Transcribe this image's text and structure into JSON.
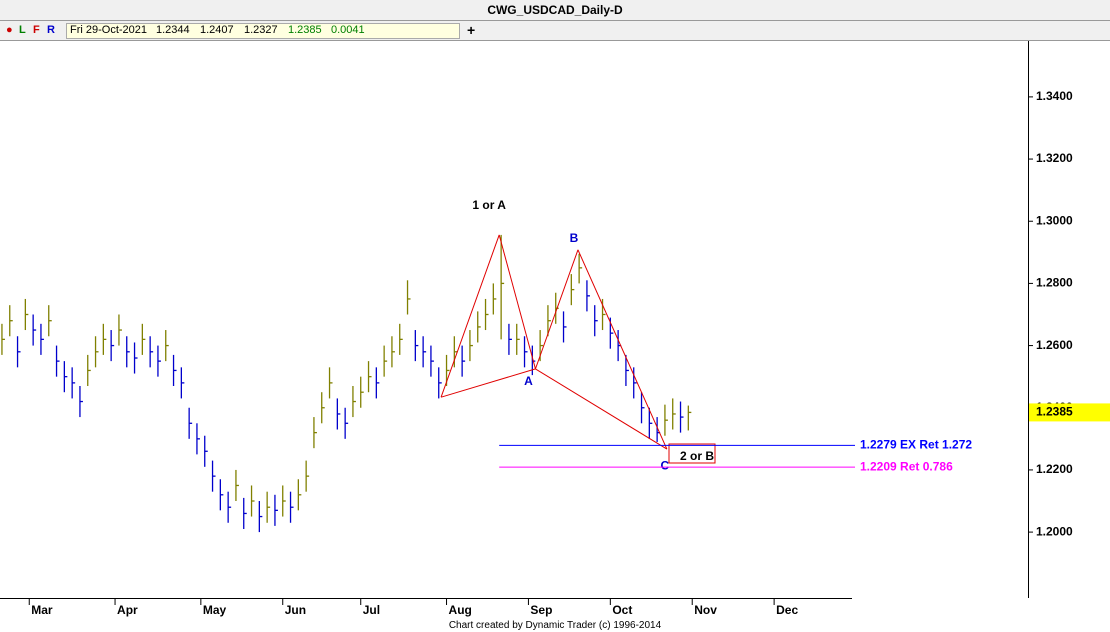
{
  "header": {
    "title": "CWG_USDCAD_Daily-D",
    "buttons": [
      "L",
      "F",
      "R"
    ],
    "date": "Fri 29-Oct-2021",
    "ohlc": [
      "1.2344",
      "1.2407",
      "1.2327",
      "1.2385"
    ],
    "change": "0.0041",
    "add": "+"
  },
  "footer": "Chart created by Dynamic Trader  (c) 1996-2014",
  "chart_data": {
    "type": "ohlc",
    "up_color": "#808000",
    "down_color": "#0000cc",
    "x": [
      0,
      2,
      4,
      6,
      8,
      10,
      12,
      14,
      16,
      18,
      20,
      22,
      24,
      26,
      28,
      30,
      32,
      34,
      36,
      38,
      40,
      42,
      44,
      46,
      48,
      50,
      52,
      54,
      56,
      58,
      60,
      62,
      64,
      66,
      68,
      70,
      72,
      74,
      76,
      78,
      80,
      82,
      84,
      86,
      88,
      90,
      92,
      94,
      96,
      98,
      100,
      102,
      104,
      106,
      108,
      110,
      112,
      114,
      116,
      118,
      120,
      122,
      124,
      126,
      128,
      130,
      132,
      134,
      136,
      138,
      140,
      142,
      144,
      146,
      148,
      150,
      152,
      154,
      156,
      158,
      160,
      162,
      164,
      166,
      168,
      170,
      172,
      174,
      176
    ],
    "high": [
      1.267,
      1.273,
      1.263,
      1.275,
      1.27,
      1.267,
      1.273,
      1.26,
      1.255,
      1.253,
      1.247,
      1.257,
      1.263,
      1.267,
      1.265,
      1.27,
      1.263,
      1.261,
      1.267,
      1.263,
      1.26,
      1.265,
      1.257,
      1.253,
      1.24,
      1.235,
      1.231,
      1.223,
      1.217,
      1.213,
      1.22,
      1.211,
      1.215,
      1.21,
      1.213,
      1.212,
      1.215,
      1.213,
      1.217,
      1.223,
      1.237,
      1.245,
      1.253,
      1.243,
      1.24,
      1.247,
      1.25,
      1.255,
      1.253,
      1.26,
      1.263,
      1.267,
      1.281,
      1.265,
      1.263,
      1.26,
      1.253,
      1.257,
      1.263,
      1.26,
      1.265,
      1.271,
      1.275,
      1.28,
      1.2956,
      1.267,
      1.267,
      1.263,
      1.26,
      1.265,
      1.273,
      1.277,
      1.271,
      1.283,
      1.2895,
      1.281,
      1.273,
      1.275,
      1.269,
      1.265,
      1.257,
      1.253,
      1.245,
      1.24,
      1.237,
      1.241,
      1.243,
      1.242,
      1.2407
    ],
    "low": [
      1.257,
      1.263,
      1.253,
      1.265,
      1.26,
      1.257,
      1.263,
      1.25,
      1.245,
      1.243,
      1.237,
      1.247,
      1.253,
      1.257,
      1.255,
      1.26,
      1.253,
      1.251,
      1.257,
      1.253,
      1.25,
      1.255,
      1.247,
      1.243,
      1.23,
      1.225,
      1.221,
      1.213,
      1.207,
      1.203,
      1.21,
      1.201,
      1.205,
      1.2,
      1.203,
      1.202,
      1.205,
      1.203,
      1.207,
      1.213,
      1.227,
      1.235,
      1.243,
      1.233,
      1.23,
      1.237,
      1.24,
      1.245,
      1.243,
      1.25,
      1.253,
      1.257,
      1.27,
      1.255,
      1.253,
      1.25,
      1.243,
      1.247,
      1.253,
      1.25,
      1.255,
      1.261,
      1.265,
      1.27,
      1.262,
      1.257,
      1.257,
      1.253,
      1.2505,
      1.255,
      1.263,
      1.267,
      1.261,
      1.273,
      1.28,
      1.271,
      1.263,
      1.265,
      1.259,
      1.255,
      1.247,
      1.243,
      1.235,
      1.23,
      1.229,
      1.231,
      1.233,
      1.232,
      1.2327
    ],
    "close": [
      1.262,
      1.268,
      1.258,
      1.27,
      1.265,
      1.262,
      1.268,
      1.255,
      1.25,
      1.248,
      1.242,
      1.252,
      1.258,
      1.262,
      1.26,
      1.265,
      1.258,
      1.256,
      1.262,
      1.258,
      1.255,
      1.26,
      1.252,
      1.248,
      1.235,
      1.23,
      1.226,
      1.218,
      1.212,
      1.208,
      1.215,
      1.206,
      1.21,
      1.205,
      1.208,
      1.207,
      1.21,
      1.208,
      1.212,
      1.218,
      1.232,
      1.24,
      1.248,
      1.238,
      1.235,
      1.242,
      1.245,
      1.25,
      1.248,
      1.255,
      1.258,
      1.262,
      1.275,
      1.26,
      1.258,
      1.255,
      1.248,
      1.252,
      1.258,
      1.255,
      1.26,
      1.266,
      1.27,
      1.275,
      1.28,
      1.262,
      1.262,
      1.258,
      1.255,
      1.26,
      1.268,
      1.272,
      1.266,
      1.278,
      1.285,
      1.276,
      1.268,
      1.27,
      1.264,
      1.26,
      1.252,
      1.248,
      1.24,
      1.235,
      1.232,
      1.236,
      1.238,
      1.237,
      1.2385
    ],
    "xlim": [
      -0.5,
      263.1
    ],
    "xticks": [
      {
        "value": 7,
        "label": "Mar"
      },
      {
        "value": 29,
        "label": "Apr"
      },
      {
        "value": 51,
        "label": "May"
      },
      {
        "value": 72,
        "label": "Jun"
      },
      {
        "value": 92,
        "label": "Jul"
      },
      {
        "value": 114,
        "label": "Aug"
      },
      {
        "value": 135,
        "label": "Sep"
      },
      {
        "value": 156,
        "label": "Oct"
      },
      {
        "value": 177,
        "label": "Nov"
      },
      {
        "value": 198,
        "label": "Dec"
      }
    ],
    "ylim": [
      1.1788,
      1.3583
    ],
    "yticks": [
      {
        "value": 1.2,
        "label": "1.2000"
      },
      {
        "value": 1.22,
        "label": "1.2200"
      },
      {
        "value": 1.24,
        "label": "1.2400"
      },
      {
        "value": 1.26,
        "label": "1.2600"
      },
      {
        "value": 1.28,
        "label": "1.2800"
      },
      {
        "value": 1.3,
        "label": "1.3000"
      },
      {
        "value": 1.32,
        "label": "1.3200"
      },
      {
        "value": 1.34,
        "label": "1.3400"
      }
    ],
    "pattern": {
      "color": "#e00000",
      "x": [
        112.6,
        127.5,
        136.8,
        147.7,
        170.5
      ],
      "y": [
        1.2434,
        1.2956,
        1.2525,
        1.2908,
        1.2267
      ],
      "labels": [
        "1 or A",
        "A",
        "B",
        "C"
      ],
      "target_label": "2 or B"
    },
    "levels": [
      {
        "value": 1.2279,
        "label": "1.2279 EX Ret 1.272",
        "color": "#0000ff"
      },
      {
        "value": 1.2209,
        "label": "1.2209 Ret 0.786",
        "color": "#ff00ff"
      }
    ],
    "last_color": "#ffff00"
  }
}
